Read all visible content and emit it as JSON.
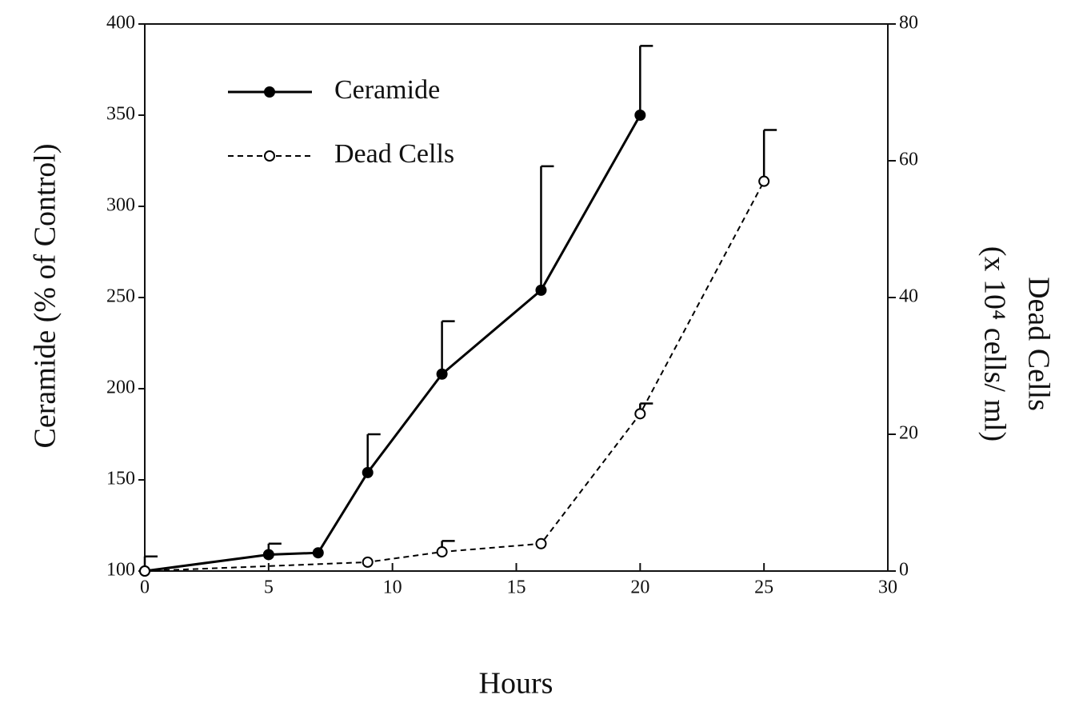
{
  "chart_data": {
    "type": "line",
    "x_label": "Hours",
    "y_label": "Ceramide (% of Control)",
    "y2_label": [
      "Dead Cells",
      "(x 10⁴ cells/ ml)"
    ],
    "xlim": [
      0,
      30
    ],
    "xticks": [
      0,
      5,
      10,
      15,
      20,
      25,
      30
    ],
    "ylim": [
      100,
      400
    ],
    "yticks": [
      100,
      150,
      200,
      250,
      300,
      350,
      400
    ],
    "y2lim": [
      0,
      80
    ],
    "y2ticks": [
      0,
      20,
      40,
      60,
      80
    ],
    "legend": "upper left",
    "series": [
      {
        "name": "Ceramide",
        "color": "#000000",
        "style": "solid",
        "marker": "filled",
        "x": [
          0,
          5,
          7,
          9,
          12,
          16,
          20
        ],
        "values": [
          100,
          109,
          110,
          154,
          208,
          254,
          350
        ],
        "errors": [
          8,
          6,
          null,
          21,
          29,
          68,
          38
        ]
      },
      {
        "name": "Dead Cells",
        "color": "#000000",
        "style": "dashed",
        "marker": "open",
        "axis": "y2",
        "x": [
          0,
          9,
          12,
          16,
          20,
          25
        ],
        "values": [
          0,
          1.3,
          2.8,
          4,
          23,
          57
        ],
        "errors": [
          null,
          null,
          1.6,
          null,
          1.5,
          7.5
        ]
      }
    ]
  }
}
